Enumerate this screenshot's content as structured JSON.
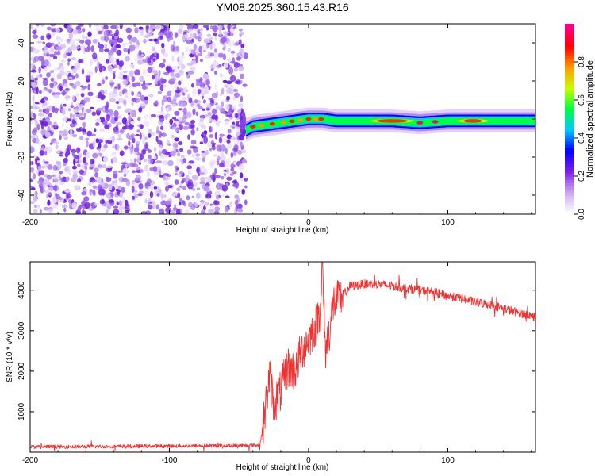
{
  "title": "YM08.2025.360.15.43.R16",
  "chart_data": [
    {
      "type": "heatmap",
      "xlabel": "Height of straight line (km)",
      "ylabel": "Frequency (Hz)",
      "xlim": [
        -200,
        163
      ],
      "ylim": [
        -50,
        50
      ],
      "x_ticks": [
        -200,
        -100,
        0,
        100
      ],
      "y_ticks": [
        -40,
        -20,
        0,
        20,
        40
      ],
      "grid": false,
      "noise_region_x": [
        -200,
        -45
      ],
      "carrier_track": {
        "x": [
          -45,
          -40,
          -30,
          -20,
          -10,
          0,
          10,
          20,
          40,
          60,
          80,
          100,
          120,
          163
        ],
        "frequency": [
          -6,
          -4,
          -3,
          -2,
          -1,
          0,
          0,
          -1,
          -1,
          -1,
          -2,
          -1,
          -1,
          -1
        ]
      },
      "colorbar": {
        "label": "Normalized spectral amplitude",
        "range": [
          0,
          1
        ],
        "ticks": [
          "0.0",
          "0.2",
          "0.4",
          "0.6",
          "0.8"
        ],
        "colors": [
          "#ffffff",
          "#c9a6f0",
          "#7b1fe8",
          "#0000ff",
          "#00c8ff",
          "#00ff40",
          "#c8ff00",
          "#ff9a00",
          "#ff0000",
          "#ff0088"
        ]
      }
    },
    {
      "type": "line",
      "xlabel": "Height of straight line (km)",
      "ylabel": "SNR (10 * v/v)",
      "xlim": [
        -200,
        163
      ],
      "ylim": [
        0,
        4700
      ],
      "x_ticks": [
        -200,
        -100,
        0,
        100
      ],
      "y_ticks": [
        1000,
        2000,
        3000,
        4000
      ],
      "grid": false,
      "color": "#ee3333",
      "series": [
        {
          "x": [
            -200,
            -150,
            -100,
            -60,
            -35,
            -32,
            -28,
            -25,
            -20,
            -15,
            -10,
            -5,
            0,
            5,
            8,
            10,
            12,
            15,
            18,
            20,
            25,
            30,
            40,
            50,
            60,
            70,
            80,
            90,
            100,
            110,
            120,
            130,
            140,
            150,
            163
          ],
          "y": [
            130,
            140,
            150,
            160,
            170,
            800,
            1900,
            1200,
            1500,
            2100,
            2000,
            2500,
            2800,
            3100,
            3500,
            4600,
            2500,
            3000,
            3700,
            3700,
            3900,
            4100,
            4150,
            4150,
            4100,
            4050,
            4000,
            3950,
            3850,
            3800,
            3700,
            3650,
            3550,
            3450,
            3350
          ]
        }
      ]
    }
  ]
}
